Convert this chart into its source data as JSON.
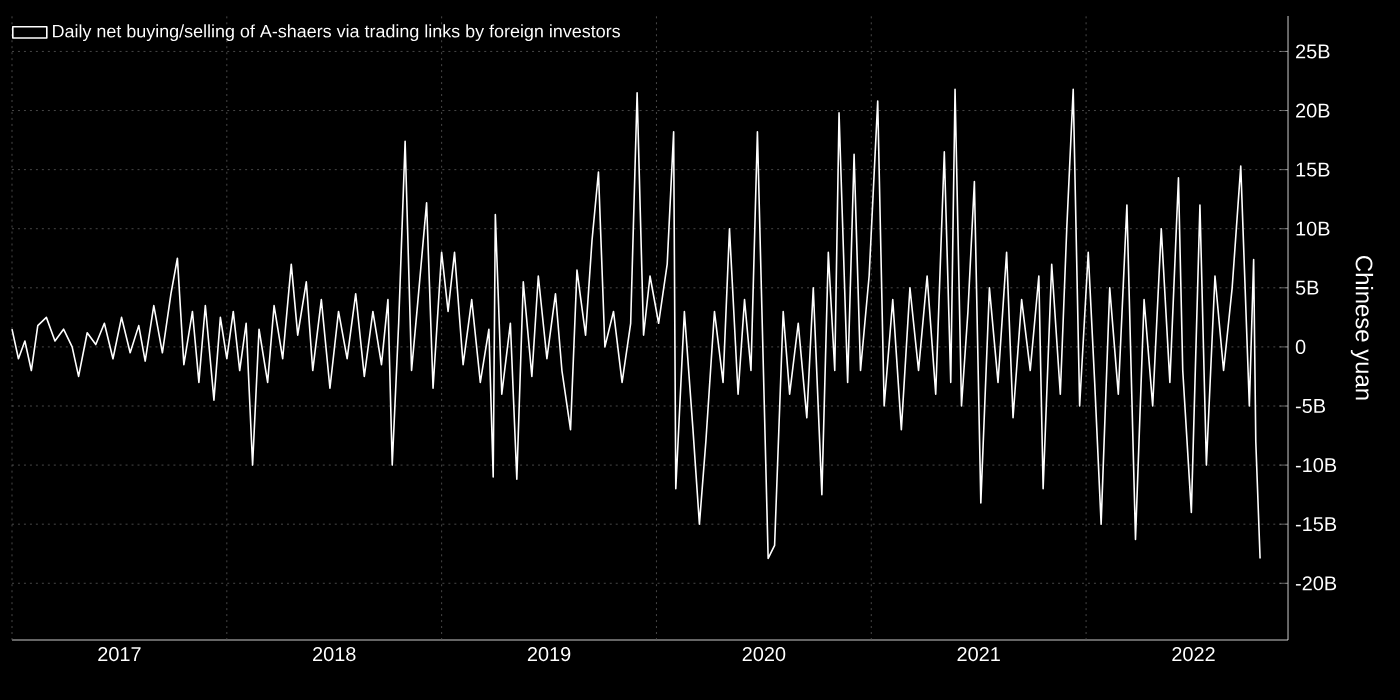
{
  "chart_data": {
    "type": "line",
    "ylabel": "Chinese yuan",
    "legend": "top left",
    "grid": true,
    "marker": "none",
    "line_style": "solid",
    "xlim": [
      2017,
      2022.94
    ],
    "ylim": [
      -24.8,
      28
    ],
    "xticks": [
      {
        "value": 2017,
        "label": null
      },
      {
        "value": 2017.5,
        "label": "2017"
      },
      {
        "value": 2018,
        "label": null
      },
      {
        "value": 2018.5,
        "label": "2018"
      },
      {
        "value": 2019,
        "label": null
      },
      {
        "value": 2019.5,
        "label": "2019"
      },
      {
        "value": 2020,
        "label": null
      },
      {
        "value": 2020.5,
        "label": "2020"
      },
      {
        "value": 2021,
        "label": null
      },
      {
        "value": 2021.5,
        "label": "2021"
      },
      {
        "value": 2022,
        "label": null
      },
      {
        "value": 2022.5,
        "label": "2022"
      }
    ],
    "yticks": [
      {
        "value": -20,
        "label": "-20B"
      },
      {
        "value": -15,
        "label": "-15B"
      },
      {
        "value": -10,
        "label": "-10B"
      },
      {
        "value": -5,
        "label": "-5B"
      },
      0,
      {
        "value": 5,
        "label": "5B"
      },
      {
        "value": 10,
        "label": "10B"
      },
      {
        "value": 15,
        "label": "15B"
      },
      {
        "value": 20,
        "label": "20B"
      },
      {
        "value": 25,
        "label": "25B"
      }
    ],
    "series": [
      {
        "name": "Daily net buying/selling of A-shaers via trading links by foreign investors",
        "color": "#ffffff",
        "x": [
          2017.0,
          2017.03,
          2017.06,
          2017.09,
          2017.12,
          2017.16,
          2017.2,
          2017.24,
          2017.28,
          2017.31,
          2017.35,
          2017.39,
          2017.43,
          2017.47,
          2017.51,
          2017.55,
          2017.59,
          2017.62,
          2017.66,
          2017.7,
          2017.74,
          2017.77,
          2017.8,
          2017.84,
          2017.87,
          2017.9,
          2017.94,
          2017.97,
          2018.0,
          2018.03,
          2018.06,
          2018.09,
          2018.12,
          2018.15,
          2018.19,
          2018.22,
          2018.26,
          2018.3,
          2018.33,
          2018.37,
          2018.4,
          2018.44,
          2018.48,
          2018.52,
          2018.56,
          2018.6,
          2018.64,
          2018.68,
          2018.72,
          2018.75,
          2018.77,
          2018.8,
          2018.83,
          2018.86,
          2018.89,
          2018.93,
          2018.96,
          2019.0,
          2019.03,
          2019.06,
          2019.1,
          2019.14,
          2019.18,
          2019.22,
          2019.24,
          2019.25,
          2019.28,
          2019.32,
          2019.35,
          2019.38,
          2019.42,
          2019.45,
          2019.49,
          2019.53,
          2019.56,
          2019.6,
          2019.63,
          2019.67,
          2019.7,
          2019.73,
          2019.76,
          2019.8,
          2019.84,
          2019.88,
          2019.91,
          2019.94,
          2019.97,
          2020.01,
          2020.05,
          2020.08,
          2020.09,
          2020.13,
          2020.17,
          2020.2,
          2020.23,
          2020.27,
          2020.31,
          2020.34,
          2020.38,
          2020.41,
          2020.44,
          2020.47,
          2020.52,
          2020.55,
          2020.59,
          2020.62,
          2020.66,
          2020.7,
          2020.73,
          2020.77,
          2020.8,
          2020.83,
          2020.85,
          2020.89,
          2020.92,
          2020.95,
          2020.99,
          2021.03,
          2021.06,
          2021.1,
          2021.14,
          2021.18,
          2021.22,
          2021.26,
          2021.3,
          2021.34,
          2021.37,
          2021.39,
          2021.42,
          2021.45,
          2021.48,
          2021.51,
          2021.55,
          2021.59,
          2021.63,
          2021.66,
          2021.7,
          2021.74,
          2021.78,
          2021.8,
          2021.84,
          2021.88,
          2021.91,
          2021.94,
          2021.97,
          2022.01,
          2022.04,
          2022.07,
          2022.11,
          2022.15,
          2022.19,
          2022.23,
          2022.27,
          2022.31,
          2022.35,
          2022.39,
          2022.43,
          2022.45,
          2022.49,
          2022.53,
          2022.56,
          2022.6,
          2022.64,
          2022.68,
          2022.72,
          2022.76,
          2022.78,
          2022.79,
          2022.81
        ],
        "values": [
          1.5,
          -1,
          0.5,
          -2,
          1.8,
          2.5,
          0.5,
          1.5,
          0,
          -2.5,
          1.2,
          0.2,
          2,
          -1,
          2.5,
          -0.5,
          1.8,
          -1.2,
          3.5,
          -0.5,
          4.5,
          7.5,
          -1.5,
          3,
          -3,
          3.5,
          -4.5,
          2.5,
          -1,
          3,
          -2,
          2,
          -10,
          1.5,
          -3,
          3.5,
          -1,
          7,
          1,
          5.5,
          -2,
          4,
          -3.5,
          3,
          -1,
          4.5,
          -2.5,
          3,
          -1.5,
          4,
          -10,
          2,
          17.4,
          -2,
          4,
          12.2,
          -3.5,
          8,
          3,
          8,
          -1.5,
          4,
          -3,
          1.5,
          -11,
          11.2,
          -4,
          2,
          -11.2,
          5.5,
          -2.5,
          6,
          -1,
          4.5,
          -2,
          -7,
          6.5,
          1,
          9,
          14.8,
          0,
          3,
          -3,
          2,
          21.5,
          1,
          6,
          2,
          7,
          18.2,
          -12,
          3,
          -7,
          -15,
          -8,
          3,
          -3,
          10,
          -4,
          4,
          -2,
          18.2,
          -17.9,
          -16.8,
          3,
          -4,
          2,
          -6,
          5,
          -12.5,
          8,
          -2,
          19.8,
          -3,
          16.3,
          -2,
          6,
          20.8,
          -5,
          4,
          -7,
          5,
          -2,
          6,
          -4,
          16.5,
          -3,
          21.8,
          -5,
          3,
          14,
          -13.2,
          5,
          -3,
          8,
          -6,
          4,
          -2,
          6,
          -12,
          7,
          -4,
          10,
          21.8,
          -5,
          8,
          -3,
          -15,
          5,
          -4,
          12,
          -16.3,
          4,
          -5,
          10,
          -3,
          14.3,
          -2,
          -14,
          12,
          -10,
          6,
          -2,
          5,
          15.3,
          -5,
          7.4,
          -8,
          -17.9
        ]
      }
    ]
  }
}
